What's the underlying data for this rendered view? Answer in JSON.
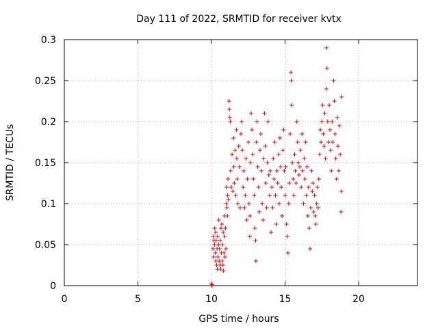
{
  "chart_data": {
    "type": "scatter",
    "title": "Day 111 of 2022, SRMTID for receiver kvtx",
    "xlabel": "GPS time / hours",
    "ylabel": "SRMTID / TECUs",
    "xlim": [
      0,
      24
    ],
    "ylim": [
      0,
      0.3
    ],
    "xticks": [
      "0",
      "5",
      "10",
      "15",
      "20"
    ],
    "xtick_values": [
      0,
      5,
      10,
      15,
      20
    ],
    "yticks": [
      "0",
      "0.05",
      "0.1",
      "0.15",
      "0.2",
      "0.25",
      "0.3"
    ],
    "ytick_values": [
      0,
      0.05,
      0.1,
      0.15,
      0.2,
      0.25,
      0.3
    ],
    "grid": true,
    "marker": "plus",
    "marker_color": "#e00000",
    "series": [
      {
        "points": [
          [
            10.0,
            0.0
          ],
          [
            10.0,
            0.002
          ],
          [
            10.05,
            0.001
          ],
          [
            10.1,
            0.045
          ],
          [
            10.12,
            0.06
          ],
          [
            10.15,
            0.035
          ],
          [
            10.18,
            0.055
          ],
          [
            10.2,
            0.05
          ],
          [
            10.22,
            0.07
          ],
          [
            10.25,
            0.04
          ],
          [
            10.28,
            0.065
          ],
          [
            10.3,
            0.03
          ],
          [
            10.32,
            0.055
          ],
          [
            10.35,
            0.025
          ],
          [
            10.38,
            0.045
          ],
          [
            10.4,
            0.02
          ],
          [
            10.42,
            0.06
          ],
          [
            10.45,
            0.035
          ],
          [
            10.48,
            0.05
          ],
          [
            10.5,
            0.08
          ],
          [
            10.52,
            0.03
          ],
          [
            10.55,
            0.045
          ],
          [
            10.58,
            0.025
          ],
          [
            10.6,
            0.055
          ],
          [
            10.62,
            0.02
          ],
          [
            10.65,
            0.07
          ],
          [
            10.68,
            0.04
          ],
          [
            10.7,
            0.075
          ],
          [
            10.72,
            0.03
          ],
          [
            10.75,
            0.05
          ],
          [
            10.78,
            0.025
          ],
          [
            10.8,
            0.065
          ],
          [
            10.82,
            0.018
          ],
          [
            10.85,
            0.04
          ],
          [
            10.88,
            0.085
          ],
          [
            10.9,
            0.06
          ],
          [
            10.92,
            0.035
          ],
          [
            10.95,
            0.07
          ],
          [
            10.98,
            0.045
          ],
          [
            11.0,
            0.1
          ],
          [
            11.02,
            0.12
          ],
          [
            11.05,
            0.095
          ],
          [
            11.08,
            0.085
          ],
          [
            11.1,
            0.11
          ],
          [
            11.12,
            0.13
          ],
          [
            11.15,
            0.105
          ],
          [
            11.2,
            0.225
          ],
          [
            11.22,
            0.215
          ],
          [
            11.25,
            0.205
          ],
          [
            11.28,
            0.2
          ],
          [
            11.3,
            0.14
          ],
          [
            11.35,
            0.12
          ],
          [
            11.4,
            0.16
          ],
          [
            11.45,
            0.115
          ],
          [
            11.5,
            0.18
          ],
          [
            11.52,
            0.145
          ],
          [
            11.55,
            0.125
          ],
          [
            11.6,
            0.165
          ],
          [
            11.65,
            0.11
          ],
          [
            11.7,
            0.19
          ],
          [
            11.72,
            0.155
          ],
          [
            11.75,
            0.13
          ],
          [
            11.8,
            0.1
          ],
          [
            11.85,
            0.17
          ],
          [
            11.9,
            0.145
          ],
          [
            11.95,
            0.095
          ],
          [
            12.0,
            0.185
          ],
          [
            12.05,
            0.2
          ],
          [
            12.1,
            0.165
          ],
          [
            12.15,
            0.12
          ],
          [
            12.2,
            0.14
          ],
          [
            12.25,
            0.095
          ],
          [
            12.3,
            0.11
          ],
          [
            12.35,
            0.155
          ],
          [
            12.4,
            0.08
          ],
          [
            12.45,
            0.13
          ],
          [
            12.5,
            0.175
          ],
          [
            12.55,
            0.1
          ],
          [
            12.6,
            0.06
          ],
          [
            12.62,
            0.085
          ],
          [
            12.65,
            0.15
          ],
          [
            12.7,
            0.21
          ],
          [
            12.75,
            0.19
          ],
          [
            12.8,
            0.16
          ],
          [
            12.85,
            0.13
          ],
          [
            12.9,
            0.11
          ],
          [
            12.95,
            0.07
          ],
          [
            13.0,
            0.055
          ],
          [
            13.02,
            0.03
          ],
          [
            13.05,
            0.175
          ],
          [
            13.1,
            0.2
          ],
          [
            13.15,
            0.145
          ],
          [
            13.2,
            0.12
          ],
          [
            13.25,
            0.09
          ],
          [
            13.3,
            0.165
          ],
          [
            13.35,
            0.185
          ],
          [
            13.4,
            0.14
          ],
          [
            13.45,
            0.1
          ],
          [
            13.5,
            0.08
          ],
          [
            13.55,
            0.155
          ],
          [
            13.6,
            0.21
          ],
          [
            13.65,
            0.17
          ],
          [
            13.7,
            0.125
          ],
          [
            13.75,
            0.095
          ],
          [
            13.8,
            0.15
          ],
          [
            13.85,
            0.2
          ],
          [
            13.9,
            0.135
          ],
          [
            13.95,
            0.11
          ],
          [
            14.0,
            0.14
          ],
          [
            14.05,
            0.065
          ],
          [
            14.1,
            0.12
          ],
          [
            14.15,
            0.095
          ],
          [
            14.2,
            0.155
          ],
          [
            14.25,
            0.13
          ],
          [
            14.3,
            0.175
          ],
          [
            14.35,
            0.11
          ],
          [
            14.4,
            0.075
          ],
          [
            14.45,
            0.14
          ],
          [
            14.5,
            0.125
          ],
          [
            14.55,
            0.16
          ],
          [
            14.6,
            0.1
          ],
          [
            14.65,
            0.18
          ],
          [
            14.7,
            0.145
          ],
          [
            14.75,
            0.12
          ],
          [
            14.8,
            0.085
          ],
          [
            14.85,
            0.165
          ],
          [
            14.9,
            0.19
          ],
          [
            14.95,
            0.14
          ],
          [
            15.0,
            0.11
          ],
          [
            15.05,
            0.145
          ],
          [
            15.1,
            0.075
          ],
          [
            15.15,
            0.06
          ],
          [
            15.2,
            0.04
          ],
          [
            15.25,
            0.1
          ],
          [
            15.3,
            0.125
          ],
          [
            15.35,
            0.185
          ],
          [
            15.4,
            0.26
          ],
          [
            15.42,
            0.25
          ],
          [
            15.45,
            0.22
          ],
          [
            15.5,
            0.15
          ],
          [
            15.55,
            0.13
          ],
          [
            15.6,
            0.11
          ],
          [
            15.65,
            0.16
          ],
          [
            15.7,
            0.14
          ],
          [
            15.75,
            0.125
          ],
          [
            15.8,
            0.2
          ],
          [
            15.85,
            0.175
          ],
          [
            15.9,
            0.15
          ],
          [
            15.95,
            0.135
          ],
          [
            16.0,
            0.145
          ],
          [
            16.05,
            0.165
          ],
          [
            16.1,
            0.12
          ],
          [
            16.15,
            0.185
          ],
          [
            16.2,
            0.14
          ],
          [
            16.25,
            0.1
          ],
          [
            16.3,
            0.155
          ],
          [
            16.35,
            0.13
          ],
          [
            16.4,
            0.175
          ],
          [
            16.45,
            0.11
          ],
          [
            16.5,
            0.145
          ],
          [
            16.55,
            0.085
          ],
          [
            16.6,
            0.12
          ],
          [
            16.65,
            0.07
          ],
          [
            16.7,
            0.045
          ],
          [
            16.75,
            0.095
          ],
          [
            16.8,
            0.14
          ],
          [
            16.85,
            0.115
          ],
          [
            16.9,
            0.125
          ],
          [
            16.95,
            0.09
          ],
          [
            17.0,
            0.11
          ],
          [
            17.05,
            0.085
          ],
          [
            17.1,
            0.075
          ],
          [
            17.15,
            0.1
          ],
          [
            17.2,
            0.12
          ],
          [
            17.25,
            0.095
          ],
          [
            17.3,
            0.13
          ],
          [
            17.35,
            0.16
          ],
          [
            17.4,
            0.19
          ],
          [
            17.45,
            0.175
          ],
          [
            17.5,
            0.2
          ],
          [
            17.55,
            0.22
          ],
          [
            17.6,
            0.185
          ],
          [
            17.65,
            0.17
          ],
          [
            17.7,
            0.21
          ],
          [
            17.75,
            0.155
          ],
          [
            17.8,
            0.24
          ],
          [
            17.82,
            0.29
          ],
          [
            17.85,
            0.265
          ],
          [
            17.9,
            0.2
          ],
          [
            17.95,
            0.175
          ],
          [
            18.0,
            0.22
          ],
          [
            18.05,
            0.19
          ],
          [
            18.1,
            0.165
          ],
          [
            18.15,
            0.14
          ],
          [
            18.2,
            0.2
          ],
          [
            18.25,
            0.175
          ],
          [
            18.3,
            0.25
          ],
          [
            18.35,
            0.225
          ],
          [
            18.4,
            0.185
          ],
          [
            18.45,
            0.155
          ],
          [
            18.5,
            0.13
          ],
          [
            18.55,
            0.205
          ],
          [
            18.6,
            0.17
          ],
          [
            18.65,
            0.14
          ],
          [
            18.7,
            0.195
          ],
          [
            18.75,
            0.16
          ],
          [
            18.8,
            0.09
          ],
          [
            18.82,
            0.115
          ],
          [
            18.85,
            0.23
          ]
        ]
      }
    ]
  }
}
